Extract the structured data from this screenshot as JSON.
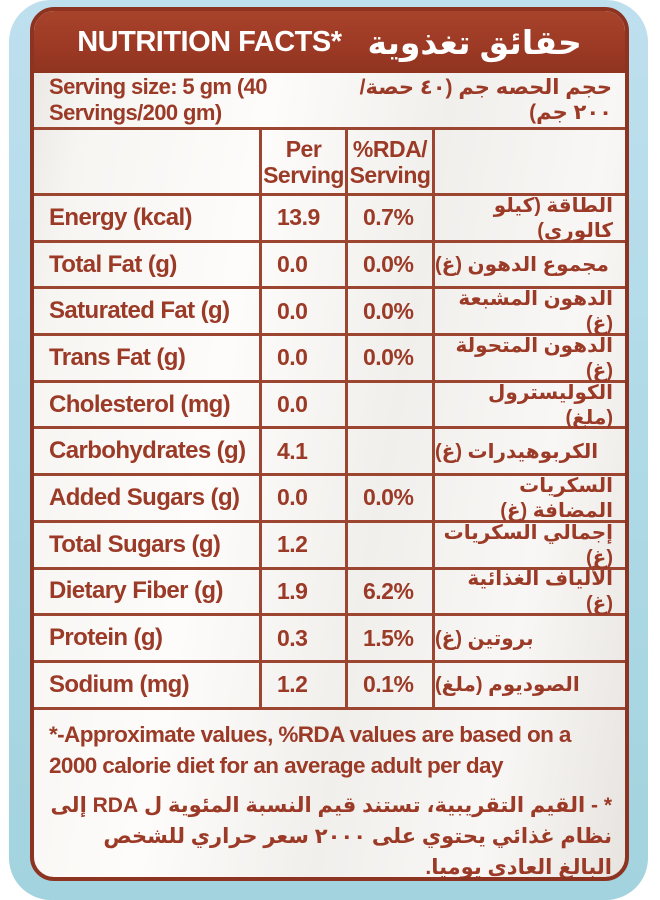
{
  "colors": {
    "maroon": "#9B3A27",
    "border": "#8D3322",
    "label_background": "#F6F4F1",
    "backdrop_blue": "#AFD9E8"
  },
  "header": {
    "title_en": "NUTRITION FACTS*",
    "title_ar": "حقائق تغذوية"
  },
  "serving": {
    "en": "Serving size: 5 gm (40 Servings/200 gm)",
    "ar": "حجم الحصه جم (٤٠ حصة/٢٠٠ جم)"
  },
  "table": {
    "headers": {
      "per": [
        "Per",
        "Serving"
      ],
      "rda": [
        "%RDA/",
        "Serving"
      ]
    },
    "rows": [
      {
        "en": "Energy (kcal)",
        "per": "13.9",
        "rda": "0.7%",
        "ar": "الطاقة (كيلو كالوري)"
      },
      {
        "en": "Total Fat (g)",
        "per": "0.0",
        "rda": "0.0%",
        "ar": "مجموع الدهون (غ)"
      },
      {
        "en": "Saturated Fat (g)",
        "per": "0.0",
        "rda": "0.0%",
        "ar": "الدهون المشبعة (غ)"
      },
      {
        "en": "Trans Fat (g)",
        "per": "0.0",
        "rda": "0.0%",
        "ar": "الدهون المتحولة (غ)"
      },
      {
        "en": "Cholesterol (mg)",
        "per": "0.0",
        "rda": "",
        "ar": "الكوليسترول (ملغ)"
      },
      {
        "en": "Carbohydrates (g)",
        "per": "4.1",
        "rda": "",
        "ar": "الكربوهيدرات (غ)"
      },
      {
        "en": "Added Sugars (g)",
        "per": "0.0",
        "rda": "0.0%",
        "ar": "السكريات المضافة (غ)"
      },
      {
        "en": "Total Sugars (g)",
        "per": "1.2",
        "rda": "",
        "ar": "إجمالي السكريات (غ)"
      },
      {
        "en": "Dietary Fiber (g)",
        "per": "1.9",
        "rda": "6.2%",
        "ar": "الألياف الغذائية (غ)"
      },
      {
        "en": "Protein (g)",
        "per": "0.3",
        "rda": "1.5%",
        "ar": "بروتين (غ)"
      },
      {
        "en": "Sodium (mg)",
        "per": "1.2",
        "rda": "0.1%",
        "ar": "الصوديوم (ملغ)"
      }
    ]
  },
  "footnotes": {
    "en": "*-Approximate values, %RDA values are based on a 2000 calorie diet for an average adult per day",
    "ar": "* - القيم التقريبية، تستند قيم النسبة المئوية ل RDA إلى نظام غذائي يحتوي على ٢٠٠٠ سعر حراري للشخص البالغ العادي يوميا."
  }
}
